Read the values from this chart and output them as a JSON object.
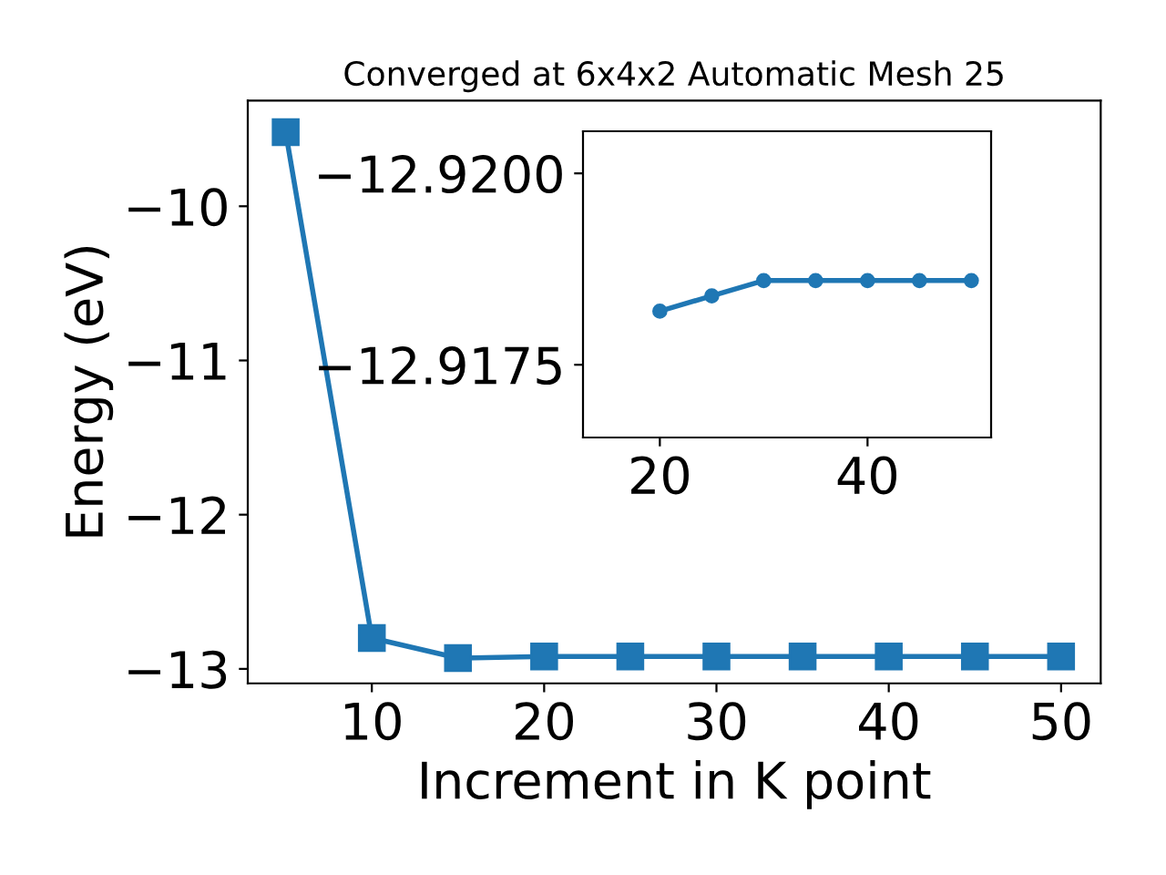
{
  "chart_data": [
    {
      "type": "line",
      "title": "Converged at 6x4x2 Automatic Mesh 25",
      "xlabel": "Increment in K point",
      "ylabel": "Energy (eV)",
      "x": [
        5,
        10,
        15,
        20,
        25,
        30,
        35,
        40,
        45,
        50
      ],
      "series": [
        {
          "color": "#1f77b4",
          "values": [
            -9.52,
            -12.8,
            -12.93,
            -12.92,
            -12.92,
            -12.92,
            -12.92,
            -12.92,
            -12.92,
            -12.92
          ]
        }
      ],
      "xlim": [
        2.8,
        52.3
      ],
      "ylim": [
        -13.094,
        -9.315
      ],
      "xticks": [
        10,
        20,
        30,
        40,
        50
      ],
      "yticks": [
        {
          "value": -13,
          "label": "−13"
        },
        {
          "value": -12,
          "label": "−12"
        },
        {
          "value": -11,
          "label": "−11"
        },
        {
          "value": -10,
          "label": "−10"
        }
      ],
      "marker": "square",
      "line_style": "solid",
      "grid": false,
      "legend": false
    },
    {
      "type": "line",
      "x": [
        20,
        25,
        30,
        35,
        40,
        45,
        50
      ],
      "series": [
        {
          "color": "#1f77b4",
          "values": [
            -12.9182,
            -12.9184,
            -12.9186,
            -12.9186,
            -12.9186,
            -12.9186,
            -12.9186
          ]
        }
      ],
      "xlim": [
        12.6,
        51.9
      ],
      "ylim": [
        -12.91655,
        -12.92055
      ],
      "xticks": [
        20,
        40
      ],
      "yticks": [
        {
          "value": -12.92,
          "label": "−12.9200"
        },
        {
          "value": -12.9175,
          "label": "−12.9175"
        }
      ],
      "marker": "circle",
      "line_style": "solid",
      "grid": false,
      "legend": false
    }
  ]
}
